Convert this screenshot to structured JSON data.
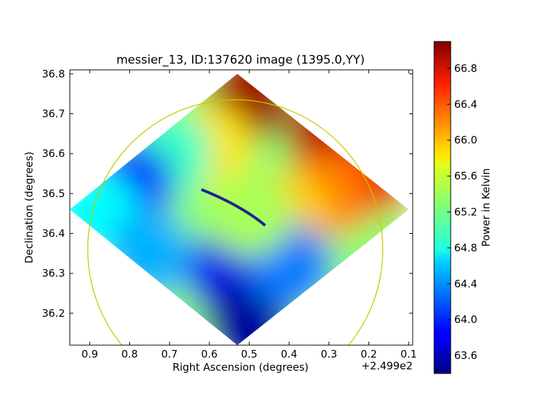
{
  "chart_data": {
    "type": "heatmap",
    "title": "messier_13, ID:137620 image (1395.0,YY)",
    "xlabel": "Right Ascension (degrees)",
    "ylabel": "Declination (degrees)",
    "x_offset_label": "+2.499e2",
    "xlim": [
      0.95,
      0.09
    ],
    "ylim": [
      36.12,
      36.81
    ],
    "xticks": [
      0.9,
      0.8,
      0.7,
      0.6,
      0.5,
      0.4,
      0.3,
      0.2,
      0.1
    ],
    "yticks": [
      36.2,
      36.3,
      36.4,
      36.5,
      36.6,
      36.7,
      36.8
    ],
    "colorbar": {
      "label": "Power in Kelvin",
      "min": 63.4,
      "max": 67.1,
      "ticks": [
        63.6,
        64.0,
        64.4,
        64.8,
        65.2,
        65.6,
        66.0,
        66.4,
        66.8
      ],
      "colormap": "jet"
    },
    "footprint_corners": [
      [
        0.53,
        36.8
      ],
      [
        0.1,
        36.46
      ],
      [
        0.53,
        36.12
      ],
      [
        0.95,
        36.46
      ]
    ],
    "circle": {
      "center_ra": 0.535,
      "center_dec": 36.36,
      "radius_ra": 0.37,
      "radius_dec": 0.375,
      "color": "#c8c800"
    },
    "field_regions": [
      {
        "ra": 0.5,
        "dec": 36.74,
        "value": 67.0
      },
      {
        "ra": 0.3,
        "dec": 36.65,
        "value": 66.9
      },
      {
        "ra": 0.2,
        "dec": 36.55,
        "value": 66.7
      },
      {
        "ra": 0.3,
        "dec": 36.5,
        "value": 66.2
      },
      {
        "ra": 0.4,
        "dec": 36.45,
        "value": 65.9
      },
      {
        "ra": 0.6,
        "dec": 36.62,
        "value": 65.8
      },
      {
        "ra": 0.7,
        "dec": 36.6,
        "value": 65.0
      },
      {
        "ra": 0.8,
        "dec": 36.52,
        "value": 63.9
      },
      {
        "ra": 0.88,
        "dec": 36.45,
        "value": 64.8
      },
      {
        "ra": 0.75,
        "dec": 36.35,
        "value": 64.5
      },
      {
        "ra": 0.55,
        "dec": 36.3,
        "value": 63.8
      },
      {
        "ra": 0.5,
        "dec": 36.18,
        "value": 63.5
      },
      {
        "ra": 0.4,
        "dec": 36.32,
        "value": 64.3
      },
      {
        "ra": 0.5,
        "dec": 36.45,
        "value": 65.4
      }
    ]
  }
}
